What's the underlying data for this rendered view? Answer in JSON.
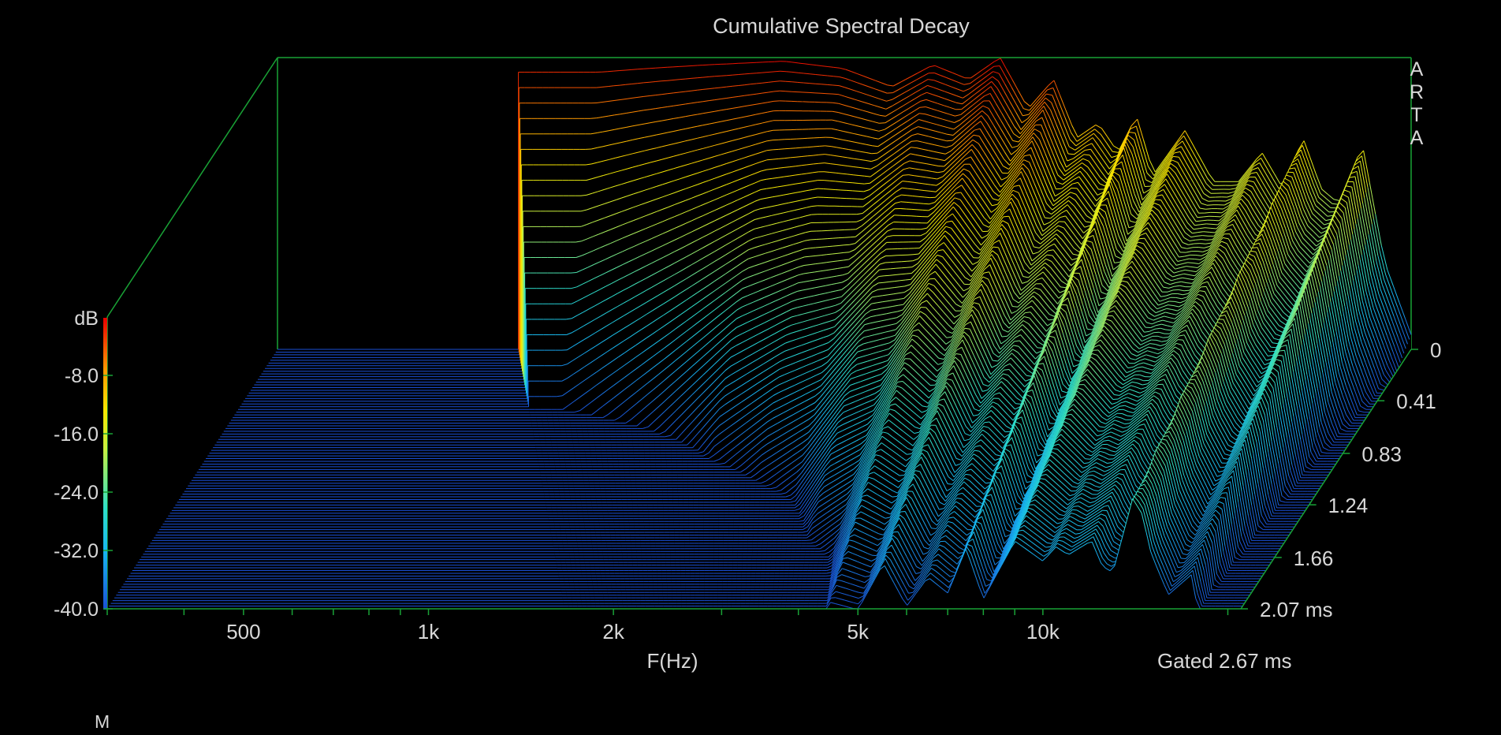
{
  "chart_data": {
    "type": "area",
    "title": "Cumulative Spectral Decay",
    "xlabel": "F(Hz)",
    "zlabel": "dB",
    "x_tick_labels": [
      "500",
      "1k",
      "2k",
      "5k",
      "10k"
    ],
    "x_ticks_hz": [
      500,
      1000,
      2000,
      5000,
      10000
    ],
    "x_range_hz": [
      300,
      21000
    ],
    "z_tick_labels": [
      "-8.0",
      "-16.0",
      "-24.0",
      "-32.0",
      "-40.0"
    ],
    "z_ticks_db": [
      -8,
      -16,
      -24,
      -32,
      -40
    ],
    "z_range_db": [
      -40,
      0
    ],
    "time_tick_labels": [
      "0",
      "0.41",
      "0.83",
      "1.24",
      "1.66",
      "2.07 ms"
    ],
    "time_ticks_ms": [
      0,
      0.41,
      0.83,
      1.24,
      1.66,
      2.07
    ],
    "time_range_ms": [
      0,
      2.07
    ],
    "gated_label": "Gated 2.67 ms",
    "watermark_letters": [
      "A",
      "R",
      "T",
      "A"
    ],
    "corner_label": "M",
    "colormap": [
      "#1a4fd6",
      "#17b6f0",
      "#2fe0c8",
      "#c8f040",
      "#f5e800",
      "#ff9a00",
      "#e80000"
    ],
    "frequency_response_t0": {
      "freq_hz": [
        1000,
        1200,
        1500,
        2000,
        2500,
        3000,
        3500,
        4000,
        4500,
        5000,
        5500,
        6000,
        6500,
        7000,
        7500,
        8000,
        9000,
        10000,
        11000,
        12000,
        13000,
        14000,
        15000,
        16000,
        17500,
        19000,
        21000
      ],
      "db": [
        -2,
        -1.5,
        -1,
        -0.5,
        -1.5,
        -4,
        -1,
        -3,
        0,
        -7,
        -3,
        -11,
        -9,
        -13,
        -8,
        -16,
        -10,
        -17,
        -17,
        -13,
        -18,
        -11,
        -18,
        -20,
        -12,
        -28,
        -38
      ]
    },
    "decay_rate_db_per_ms": {
      "freq_hz": [
        1000,
        1500,
        2000,
        3000,
        5000,
        7000,
        9000,
        10500,
        12500,
        14500,
        18000
      ],
      "rate": [
        80,
        60,
        45,
        30,
        16,
        12,
        10,
        7,
        9,
        6,
        12
      ]
    }
  }
}
